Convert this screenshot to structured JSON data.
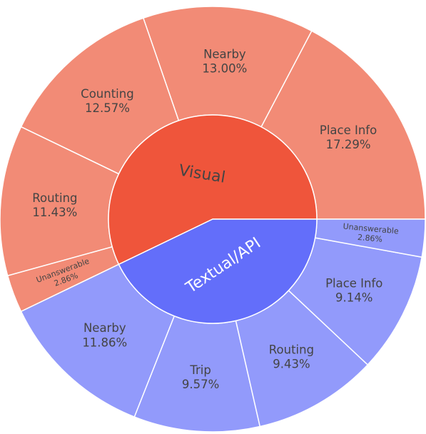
{
  "chart_data": {
    "type": "sunburst",
    "title": "",
    "rotation_deg_ccw_from_east": 0,
    "inner": [
      {
        "name": "Visual",
        "value": 57.15,
        "color": "#EF553B"
      },
      {
        "name": "Textual/API",
        "value": 42.86,
        "color": "#636EFA"
      }
    ],
    "outer": [
      {
        "parent": "Visual",
        "name": "Place Info",
        "value": 17.29,
        "label": "17.29%",
        "color": "#F28B76"
      },
      {
        "parent": "Visual",
        "name": "Nearby",
        "value": 13.0,
        "label": "13.00%",
        "color": "#F28B76"
      },
      {
        "parent": "Visual",
        "name": "Counting",
        "value": 12.57,
        "label": "12.57%",
        "color": "#F28B76"
      },
      {
        "parent": "Visual",
        "name": "Routing",
        "value": 11.43,
        "label": "11.43%",
        "color": "#F28B76"
      },
      {
        "parent": "Visual",
        "name": "Unanswerable",
        "value": 2.86,
        "label": "2.86%",
        "color": "#F28B76"
      },
      {
        "parent": "Textual/API",
        "name": "Nearby",
        "value": 11.86,
        "label": "11.86%",
        "color": "#929AFB"
      },
      {
        "parent": "Textual/API",
        "name": "Trip",
        "value": 9.57,
        "label": "9.57%",
        "color": "#929AFB"
      },
      {
        "parent": "Textual/API",
        "name": "Routing",
        "value": 9.43,
        "label": "9.43%",
        "color": "#929AFB"
      },
      {
        "parent": "Textual/API",
        "name": "Place Info",
        "value": 9.14,
        "label": "9.14%",
        "color": "#929AFB"
      },
      {
        "parent": "Textual/API",
        "name": "Unanswerable",
        "value": 2.86,
        "label": "2.86%",
        "color": "#929AFB"
      }
    ]
  }
}
